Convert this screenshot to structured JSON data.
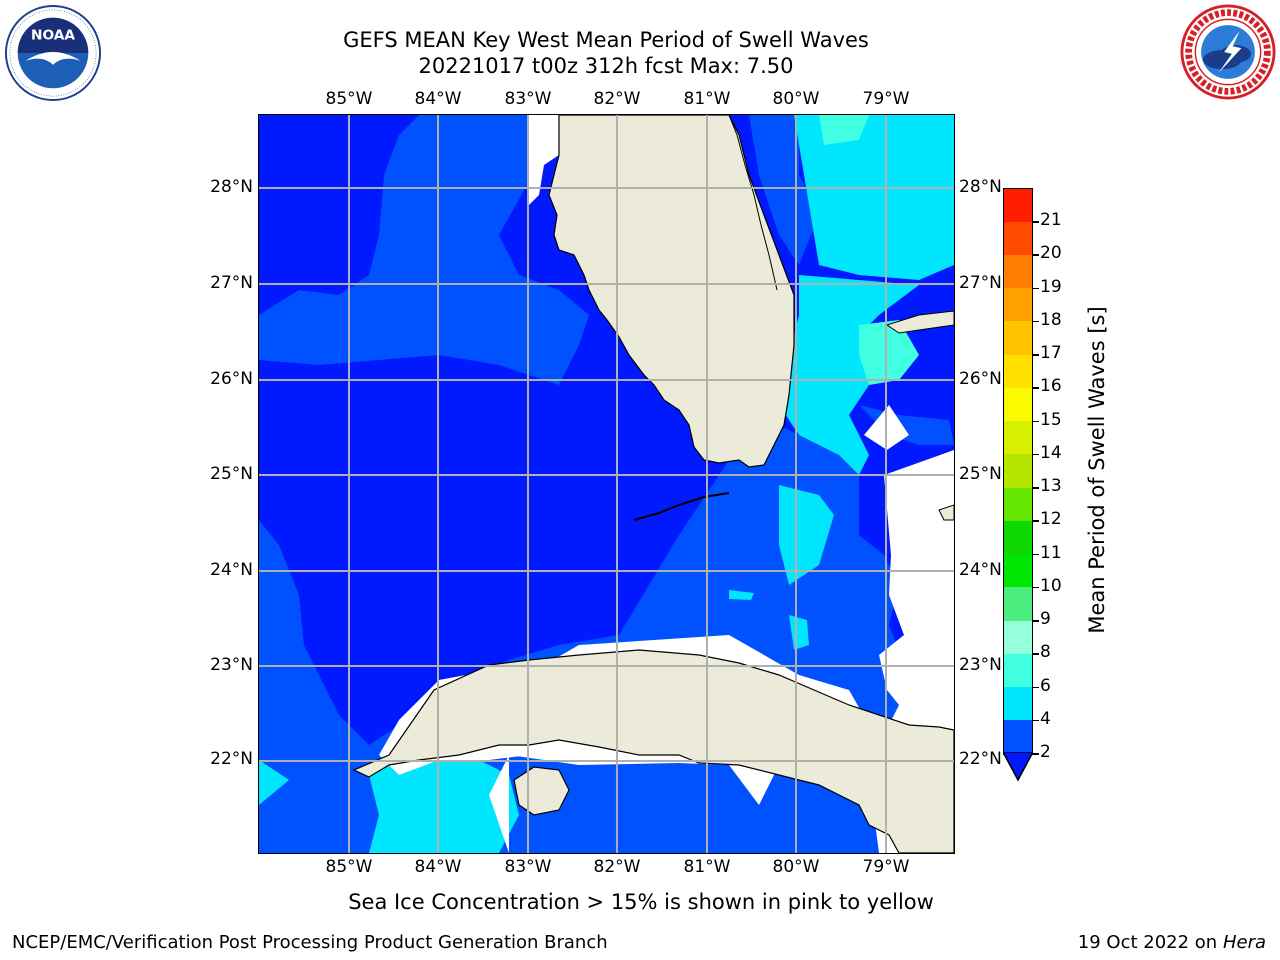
{
  "header": {
    "title_line1": "GEFS MEAN Key West Mean Period of Swell Waves",
    "title_line2": "20221017 t00z 312h fcst   Max: 7.50"
  },
  "logos": {
    "noaa": {
      "text": "NOAA",
      "ring_text": "NATIONAL OCEANIC AND ATMOSPHERIC ADMINISTRATION · U.S. DEPARTMENT OF COMMERCE"
    },
    "nws": {
      "ring_text": "NATIONAL WEATHER SERVICE"
    }
  },
  "map": {
    "longitude_labels": [
      "85°W",
      "84°W",
      "83°W",
      "82°W",
      "81°W",
      "80°W",
      "79°W"
    ],
    "latitude_labels": [
      "28°N",
      "27°N",
      "26°N",
      "25°N",
      "24°N",
      "23°N",
      "22°N"
    ],
    "grid": true,
    "colors": {
      "land": "#ecebd9",
      "no_data": "#ffffff",
      "grid": "#b0b0b0",
      "coast": "#000000"
    }
  },
  "colorbar": {
    "label": "Mean Period of Swell Waves [s]",
    "ticks": [
      "2",
      "4",
      "6",
      "8",
      "9",
      "10",
      "11",
      "12",
      "13",
      "14",
      "15",
      "16",
      "17",
      "18",
      "19",
      "20",
      "21"
    ],
    "colors": [
      "#0051ff",
      "#00e6ff",
      "#41ffe1",
      "#96ffdc",
      "#4bed7e",
      "#00e600",
      "#0fd700",
      "#64e600",
      "#b4e600",
      "#d7f000",
      "#fafa00",
      "#ffe100",
      "#ffc300",
      "#ffa000",
      "#ff7d00",
      "#ff4b00",
      "#ff1e00"
    ],
    "extend_low_color": "#0019ff"
  },
  "chart_data": {
    "type": "heatmap",
    "title": "GEFS MEAN Key West Mean Period of Swell Waves",
    "subtitle": "20221017 t00z 312h fcst   Max: 7.50",
    "x_ticks": [
      "85°W",
      "84°W",
      "83°W",
      "82°W",
      "81°W",
      "80°W",
      "79°W"
    ],
    "y_ticks": [
      "28°N",
      "27°N",
      "26°N",
      "25°N",
      "24°N",
      "23°N",
      "22°N"
    ],
    "colorbar_label": "Mean Period of Swell Waves [s]",
    "colorbar_range": [
      2,
      21
    ],
    "max_value": 7.5
  },
  "annotation": {
    "sea_ice_note": "Sea Ice Concentration > 15% is shown in pink to yellow"
  },
  "footer": {
    "left": "NCEP/EMC/Verification Post Processing Product Generation Branch",
    "right_prefix": "19 Oct 2022 on ",
    "right_host": "Hera"
  }
}
